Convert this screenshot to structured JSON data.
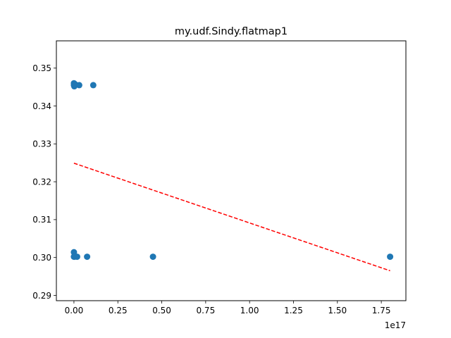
{
  "chart_data": {
    "type": "scatter",
    "title": "my.udf.Sindy.flatmap1",
    "xlabel": "",
    "ylabel": "",
    "x_offset_text": "1e17",
    "xlim": [
      -0.1,
      1.89
    ],
    "ylim": [
      0.2886,
      0.3572
    ],
    "x_ticks": [
      0.0,
      0.25,
      0.5,
      0.75,
      1.0,
      1.25,
      1.5,
      1.75
    ],
    "x_tick_labels": [
      "0.00",
      "0.25",
      "0.50",
      "0.75",
      "1.00",
      "1.25",
      "1.50",
      "1.75"
    ],
    "y_ticks": [
      0.29,
      0.3,
      0.31,
      0.32,
      0.33,
      0.34,
      0.35
    ],
    "y_tick_labels": [
      "0.29",
      "0.30",
      "0.31",
      "0.32",
      "0.33",
      "0.34",
      "0.35"
    ],
    "grid": false,
    "point_color": "#1f77b4",
    "series": [
      {
        "x": [
          0.0,
          0.0,
          0.002,
          0.005,
          0.005,
          0.03,
          0.11,
          0.0,
          0.0,
          0.003,
          0.018,
          0.075,
          0.45,
          1.8
        ],
        "y": [
          0.3455,
          0.346,
          0.3452,
          0.3455,
          0.3458,
          0.3455,
          0.3455,
          0.3014,
          0.3002,
          0.3002,
          0.3002,
          0.3002,
          0.3002,
          0.3002
        ]
      }
    ],
    "trend_line": {
      "color": "#ff0000",
      "style": "dashed",
      "x": [
        0.0,
        1.8
      ],
      "y": [
        0.3249,
        0.2965
      ]
    }
  }
}
